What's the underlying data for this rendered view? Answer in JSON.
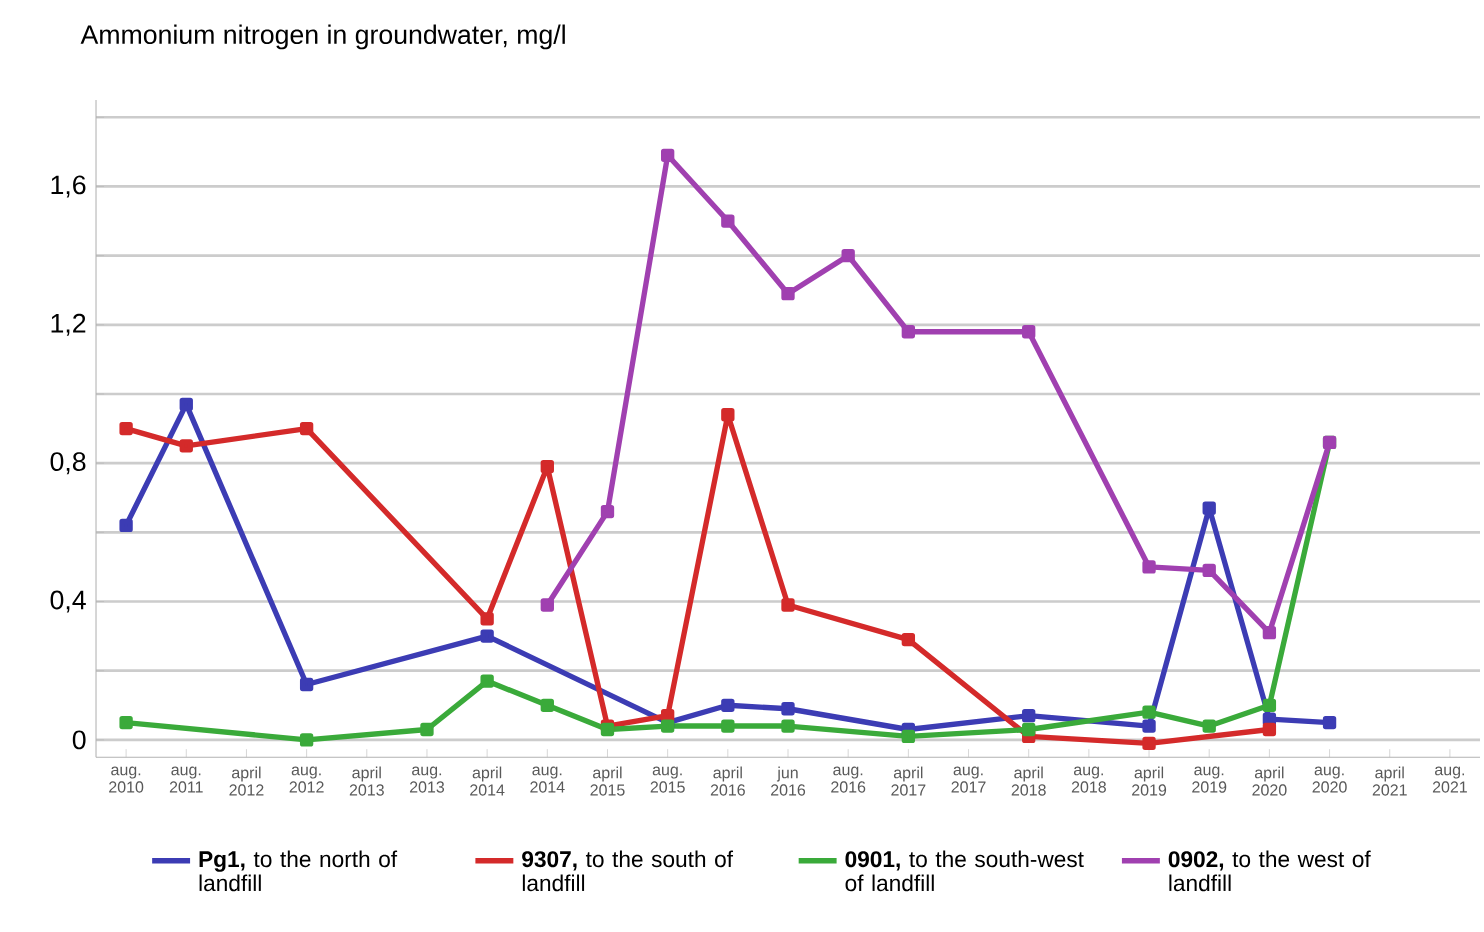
{
  "chart_data": {
    "type": "line",
    "title": "Ammonium nitrogen in groundwater, mg/l",
    "categories": [
      "aug. 2010",
      "aug. 2011",
      "april 2012",
      "aug. 2012",
      "april 2013",
      "aug. 2013",
      "april 2014",
      "aug. 2014",
      "april 2015",
      "aug. 2015",
      "april 2016",
      "jun 2016",
      "aug. 2016",
      "april 2017",
      "aug. 2017",
      "april 2018",
      "aug. 2018",
      "april 2019",
      "aug. 2019",
      "april 2020",
      "aug. 2020",
      "april 2021",
      "aug. 2021"
    ],
    "series": [
      {
        "name": "**Pg1,** to the north of landfill",
        "color": "#3c3cb4",
        "values": [
          0.62,
          0.97,
          null,
          0.16,
          null,
          null,
          0.3,
          null,
          null,
          0.05,
          0.1,
          0.09,
          null,
          0.03,
          null,
          0.07,
          null,
          0.04,
          0.67,
          0.06,
          0.05,
          null,
          null
        ]
      },
      {
        "name": "**9307,** to the south of landfill",
        "color": "#d42a2a",
        "values": [
          0.9,
          0.85,
          null,
          0.9,
          null,
          null,
          0.35,
          0.79,
          0.04,
          0.07,
          0.94,
          0.39,
          null,
          0.29,
          null,
          0.01,
          null,
          -0.01,
          null,
          0.03,
          null,
          null,
          null
        ]
      },
      {
        "name": "**0901,** to the south-west of landfill",
        "color": "#3aaa3a",
        "values": [
          0.05,
          null,
          null,
          0.0,
          null,
          0.03,
          0.17,
          0.1,
          0.03,
          0.04,
          0.04,
          0.04,
          null,
          0.01,
          null,
          0.03,
          null,
          0.08,
          0.04,
          0.1,
          0.86,
          null,
          null
        ]
      },
      {
        "name": "**0902,** to the west of landfill",
        "color": "#a040b0",
        "values": [
          null,
          null,
          null,
          null,
          null,
          null,
          null,
          0.39,
          0.66,
          1.69,
          1.5,
          1.29,
          1.4,
          1.18,
          null,
          1.18,
          null,
          0.5,
          0.49,
          0.31,
          0.86,
          null,
          null
        ]
      }
    ],
    "ylim": [
      -0.05,
      1.85
    ],
    "yticks": [
      {
        "value": 0,
        "label": "0"
      },
      {
        "value": 0.2,
        "label": null
      },
      {
        "value": 0.4,
        "label": "0,4"
      },
      {
        "value": 0.6,
        "label": null
      },
      {
        "value": 0.8,
        "label": "0,8"
      },
      {
        "value": 1.0,
        "label": null
      },
      {
        "value": 1.2,
        "label": "1,2"
      },
      {
        "value": 1.4,
        "label": null
      },
      {
        "value": 1.6,
        "label": "1,6"
      },
      {
        "value": 1.8,
        "label": null
      }
    ],
    "grid": "y",
    "legend": "bottom",
    "marker": "square",
    "line_style": "solid"
  }
}
